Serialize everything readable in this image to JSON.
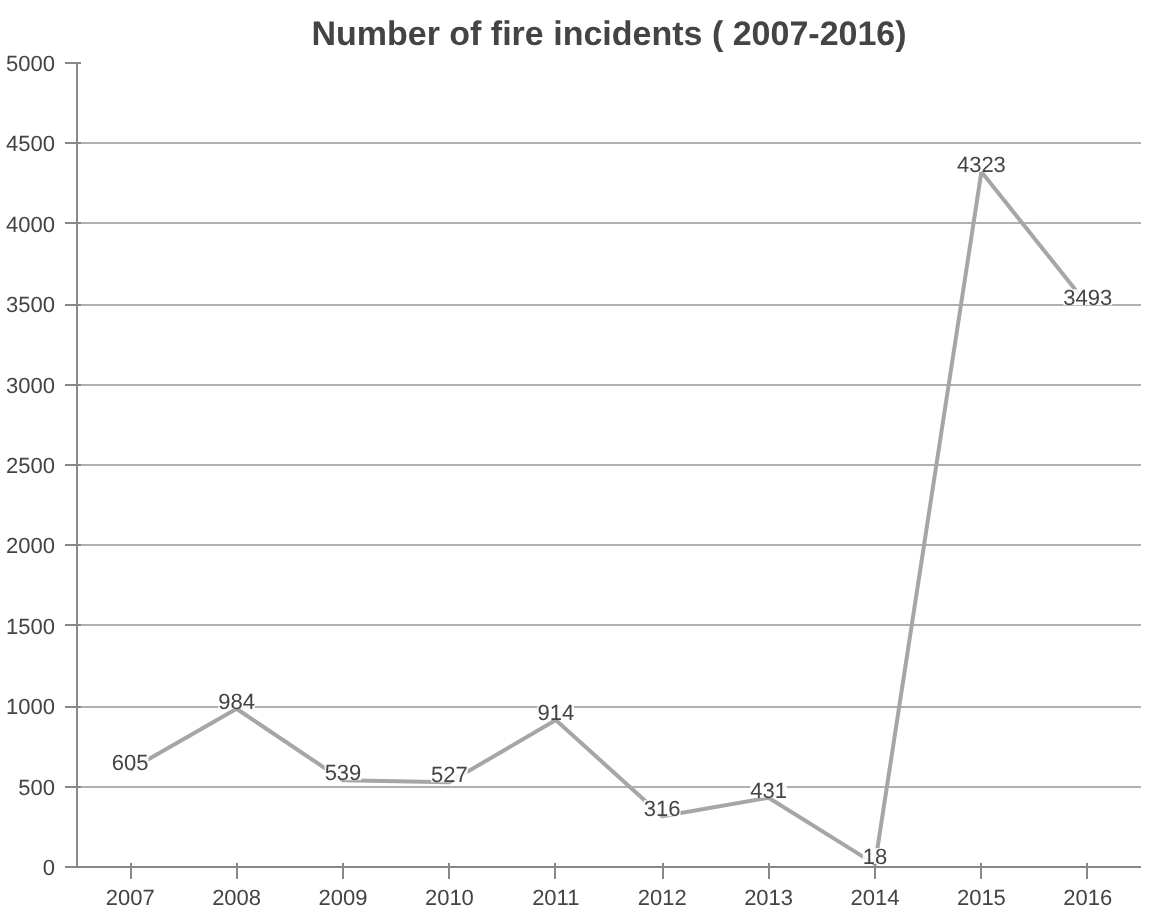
{
  "chart_data": {
    "type": "line",
    "title": "Number of fire incidents ( 2007-2016)",
    "categories": [
      "2007",
      "2008",
      "2009",
      "2010",
      "2011",
      "2012",
      "2013",
      "2014",
      "2015",
      "2016"
    ],
    "series": [
      {
        "color": "#a6a6a6",
        "values": [
          605,
          984,
          539,
          527,
          914,
          316,
          431,
          18,
          4323,
          3493
        ]
      }
    ],
    "ylim": [
      0,
      5000
    ],
    "yticks": [
      0,
      500,
      1000,
      1500,
      2000,
      2500,
      3000,
      3500,
      4000,
      4500,
      5000
    ],
    "grid": "y",
    "marker": "none",
    "line_style": "solid",
    "data_labels": true
  }
}
